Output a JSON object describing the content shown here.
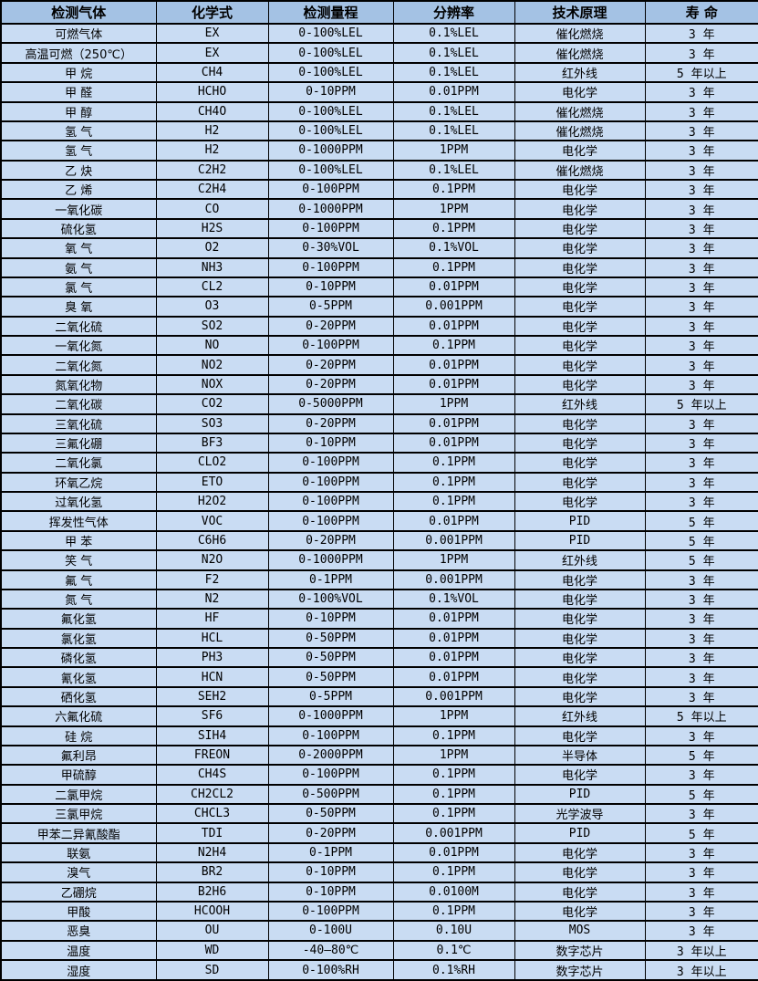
{
  "table": {
    "colors": {
      "header_bg": "#a4c2e4",
      "row_bg": "#c9dcf3",
      "border": "#000000",
      "text": "#000000"
    },
    "column_keys": [
      "gas",
      "formula",
      "range",
      "resolution",
      "principle",
      "lifespan"
    ],
    "headers": [
      "检测气体",
      "化学式",
      "检测量程",
      "分辨率",
      "技术原理",
      "寿 命"
    ],
    "rows": [
      [
        "可燃气体",
        "EX",
        "0-100%LEL",
        "0.1%LEL",
        "催化燃烧",
        "3 年"
      ],
      [
        "高温可燃（250℃）",
        "EX",
        "0-100%LEL",
        "0.1%LEL",
        "催化燃烧",
        "3 年"
      ],
      [
        "甲 烷",
        "CH4",
        "0-100%LEL",
        "0.1%LEL",
        "红外线",
        "5 年以上"
      ],
      [
        "甲 醛",
        "HCHO",
        "0-10PPM",
        "0.01PPM",
        "电化学",
        "3 年"
      ],
      [
        "甲 醇",
        "CH4O",
        "0-100%LEL",
        "0.1%LEL",
        "催化燃烧",
        "3 年"
      ],
      [
        "氢 气",
        "H2",
        "0-100%LEL",
        "0.1%LEL",
        "催化燃烧",
        "3 年"
      ],
      [
        "氢 气",
        "H2",
        "0-1000PPM",
        "1PPM",
        "电化学",
        "3 年"
      ],
      [
        "乙 炔",
        "C2H2",
        "0-100%LEL",
        "0.1%LEL",
        "催化燃烧",
        "3 年"
      ],
      [
        "乙 烯",
        "C2H4",
        "0-100PPM",
        "0.1PPM",
        "电化学",
        "3 年"
      ],
      [
        "一氧化碳",
        "CO",
        "0-1000PPM",
        "1PPM",
        "电化学",
        "3 年"
      ],
      [
        "硫化氢",
        "H2S",
        "0-100PPM",
        "0.1PPM",
        "电化学",
        "3 年"
      ],
      [
        "氧 气",
        "O2",
        "0-30%VOL",
        "0.1%VOL",
        "电化学",
        "3 年"
      ],
      [
        "氨 气",
        "NH3",
        "0-100PPM",
        "0.1PPM",
        "电化学",
        "3 年"
      ],
      [
        "氯 气",
        "CL2",
        "0-10PPM",
        "0.01PPM",
        "电化学",
        "3 年"
      ],
      [
        "臭 氧",
        "O3",
        "0-5PPM",
        "0.001PPM",
        "电化学",
        "3 年"
      ],
      [
        "二氧化硫",
        "SO2",
        "0-20PPM",
        "0.01PPM",
        "电化学",
        "3 年"
      ],
      [
        "一氧化氮",
        "NO",
        "0-100PPM",
        "0.1PPM",
        "电化学",
        "3 年"
      ],
      [
        "二氧化氮",
        "NO2",
        "0-20PPM",
        "0.01PPM",
        "电化学",
        "3 年"
      ],
      [
        "氮氧化物",
        "NOX",
        "0-20PPM",
        "0.01PPM",
        "电化学",
        "3 年"
      ],
      [
        "二氧化碳",
        "CO2",
        "0-5000PPM",
        "1PPM",
        "红外线",
        "5 年以上"
      ],
      [
        "三氧化硫",
        "SO3",
        "0-20PPM",
        "0.01PPM",
        "电化学",
        "3 年"
      ],
      [
        "三氟化硼",
        "BF3",
        "0-10PPM",
        "0.01PPM",
        "电化学",
        "3 年"
      ],
      [
        "二氧化氯",
        "CLO2",
        "0-100PPM",
        "0.1PPM",
        "电化学",
        "3 年"
      ],
      [
        "环氧乙烷",
        "ETO",
        "0-100PPM",
        "0.1PPM",
        "电化学",
        "3 年"
      ],
      [
        "过氧化氢",
        "H2O2",
        "0-100PPM",
        "0.1PPM",
        "电化学",
        "3 年"
      ],
      [
        "挥发性气体",
        "VOC",
        "0-100PPM",
        "0.01PPM",
        "PID",
        "5 年"
      ],
      [
        "甲 苯",
        "C6H6",
        "0-20PPM",
        "0.001PPM",
        "PID",
        "5 年"
      ],
      [
        "笑 气",
        "N2O",
        "0-1000PPM",
        "1PPM",
        "红外线",
        "5 年"
      ],
      [
        "氟 气",
        "F2",
        "0-1PPM",
        "0.001PPM",
        "电化学",
        "3 年"
      ],
      [
        "氮 气",
        "N2",
        "0-100%VOL",
        "0.1%VOL",
        "电化学",
        "3 年"
      ],
      [
        "氟化氢",
        "HF",
        "0-10PPM",
        "0.01PPM",
        "电化学",
        "3 年"
      ],
      [
        "氯化氢",
        "HCL",
        "0-50PPM",
        "0.01PPM",
        "电化学",
        "3 年"
      ],
      [
        "磷化氢",
        "PH3",
        "0-50PPM",
        "0.01PPM",
        "电化学",
        "3 年"
      ],
      [
        "氰化氢",
        "HCN",
        "0-50PPM",
        "0.01PPM",
        "电化学",
        "3 年"
      ],
      [
        "硒化氢",
        "SEH2",
        "0-5PPM",
        "0.001PPM",
        "电化学",
        "3 年"
      ],
      [
        "六氟化硫",
        "SF6",
        "0-1000PPM",
        "1PPM",
        "红外线",
        "5 年以上"
      ],
      [
        "硅 烷",
        "SIH4",
        "0-100PPM",
        "0.1PPM",
        "电化学",
        "3 年"
      ],
      [
        "氟利昂",
        "FREON",
        "0-2000PPM",
        "1PPM",
        "半导体",
        "5 年"
      ],
      [
        "甲硫醇",
        "CH4S",
        "0-100PPM",
        "0.1PPM",
        "电化学",
        "3 年"
      ],
      [
        "二氯甲烷",
        "CH2CL2",
        "0-500PPM",
        "0.1PPM",
        "PID",
        "5 年"
      ],
      [
        "三氯甲烷",
        "CHCL3",
        "0-50PPM",
        "0.1PPM",
        "光学波导",
        "3 年"
      ],
      [
        "甲苯二异氰酸酯",
        "TDI",
        "0-20PPM",
        "0.001PPM",
        "PID",
        "5 年"
      ],
      [
        "联氨",
        "N2H4",
        "0-1PPM",
        "0.01PPM",
        "电化学",
        "3 年"
      ],
      [
        "溴气",
        "BR2",
        "0-10PPM",
        "0.1PPM",
        "电化学",
        "3 年"
      ],
      [
        "乙硼烷",
        "B2H6",
        "0-10PPM",
        "0.0100M",
        "电化学",
        "3 年"
      ],
      [
        "甲酸",
        "HCOOH",
        "0-100PPM",
        "0.1PPM",
        "电化学",
        "3 年"
      ],
      [
        "恶臭",
        "OU",
        "0-100U",
        "0.10U",
        "MOS",
        "3 年"
      ],
      [
        "温度",
        "WD",
        "-40—80℃",
        "0.1℃",
        "数字芯片",
        "3 年以上"
      ],
      [
        "湿度",
        "SD",
        "0-100%RH",
        "0.1%RH",
        "数字芯片",
        "3 年以上"
      ]
    ]
  }
}
